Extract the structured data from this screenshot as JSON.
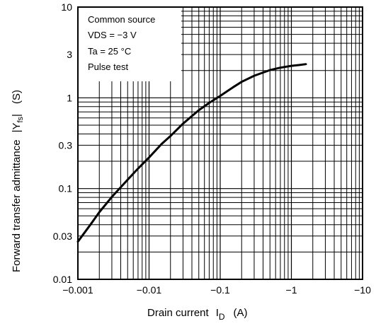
{
  "chart_data": {
    "type": "line",
    "title": "",
    "xlabel": "Drain current",
    "xlabel_symbol": "I",
    "xlabel_subscript": "D",
    "xlabel_unit": "(A)",
    "ylabel": "Forward transfer admittance",
    "ylabel_symbol": "|Y",
    "ylabel_subscript": "fs",
    "ylabel_symbol_end": "|",
    "ylabel_unit": "(S)",
    "x_scale": "log",
    "y_scale": "log",
    "xlim": [
      0.001,
      10
    ],
    "ylim": [
      0.01,
      10
    ],
    "grid": true,
    "x_tick_labels": [
      {
        "value": 0.001,
        "label": "−0.001"
      },
      {
        "value": 0.01,
        "label": "−0.01"
      },
      {
        "value": 0.1,
        "label": "−0.1"
      },
      {
        "value": 1,
        "label": "−1"
      },
      {
        "value": 10,
        "label": "−10"
      }
    ],
    "y_tick_labels": [
      {
        "value": 0.01,
        "label": "0.01"
      },
      {
        "value": 0.03,
        "label": "0.03"
      },
      {
        "value": 0.1,
        "label": "0.1"
      },
      {
        "value": 0.3,
        "label": "0.3"
      },
      {
        "value": 1,
        "label": "1"
      },
      {
        "value": 3,
        "label": "3"
      },
      {
        "value": 10,
        "label": "10"
      }
    ],
    "annotations": [
      "Common source",
      "VDS = −3 V",
      "Ta = 25 °C",
      "Pulse test"
    ],
    "series": [
      {
        "color": "#000000",
        "x": [
          0.001,
          0.0015,
          0.002,
          0.003,
          0.005,
          0.007,
          0.01,
          0.015,
          0.02,
          0.03,
          0.05,
          0.07,
          0.1,
          0.15,
          0.2,
          0.3,
          0.5,
          0.7,
          1.0,
          1.3,
          1.6
        ],
        "y": [
          0.026,
          0.04,
          0.055,
          0.081,
          0.125,
          0.166,
          0.22,
          0.31,
          0.38,
          0.52,
          0.73,
          0.88,
          1.05,
          1.3,
          1.5,
          1.75,
          2.02,
          2.15,
          2.25,
          2.3,
          2.35
        ]
      }
    ]
  }
}
